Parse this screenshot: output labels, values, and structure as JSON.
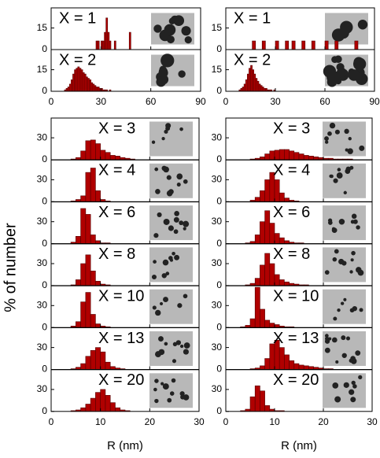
{
  "ylabel": "% of number",
  "chart_data": [
    {
      "type": "histogram",
      "annotation": "X = 1",
      "color": "#b00000",
      "xlim": [
        0,
        90
      ],
      "ylim": [
        0,
        29
      ],
      "yticks": [
        0,
        15
      ],
      "bins": [
        24,
        25,
        26,
        27,
        28,
        29,
        30,
        31,
        32,
        33,
        34,
        35,
        36,
        37,
        38,
        39,
        40,
        41,
        42,
        43,
        44,
        45,
        46,
        47,
        48
      ],
      "values": [
        0,
        0,
        0,
        6,
        6,
        0,
        6,
        6,
        12,
        22,
        12,
        6,
        0,
        0,
        6,
        0,
        0,
        0,
        0,
        0,
        0,
        0,
        0,
        12
      ]
    },
    {
      "type": "histogram",
      "annotation": "X = 2",
      "color": "#b00000",
      "xlim": [
        0,
        90
      ],
      "ylim": [
        0,
        29
      ],
      "yticks": [
        0,
        15
      ],
      "xticks": [
        0,
        30,
        60,
        90
      ],
      "bins": [
        8,
        9,
        10,
        11,
        12,
        13,
        14,
        15,
        16,
        17,
        18,
        19,
        20,
        21,
        22,
        23,
        24,
        25,
        26,
        27,
        28,
        29,
        30,
        31,
        32,
        33,
        34,
        35,
        36
      ],
      "values": [
        1,
        2,
        3,
        5,
        8,
        12,
        15,
        16,
        17,
        16,
        15,
        13,
        12,
        10,
        9,
        8,
        6,
        5,
        4,
        3,
        3,
        2,
        2,
        1,
        1,
        1,
        0,
        1
      ]
    },
    {
      "type": "histogram",
      "annotation": "X = 1",
      "color": "#b00000",
      "xlim": [
        0,
        90
      ],
      "ylim": [
        0,
        29
      ],
      "yticks": [
        0,
        15
      ],
      "bins": [
        16,
        18,
        20,
        22,
        24,
        26,
        28,
        30,
        32,
        34,
        36,
        38,
        40,
        42,
        44,
        46,
        48,
        50,
        52,
        54,
        56,
        58,
        60,
        62,
        64,
        66,
        68,
        70,
        72,
        74,
        76,
        78,
        80
      ],
      "values": [
        6,
        0,
        0,
        6,
        0,
        0,
        0,
        6,
        0,
        0,
        6,
        0,
        6,
        0,
        0,
        6,
        0,
        0,
        6,
        0,
        0,
        0,
        6,
        0,
        0,
        6,
        0,
        0,
        0,
        0,
        0,
        6
      ]
    },
    {
      "type": "histogram",
      "annotation": "X = 2",
      "color": "#b00000",
      "xlim": [
        0,
        90
      ],
      "ylim": [
        0,
        29
      ],
      "yticks": [
        0,
        15
      ],
      "xticks": [
        0,
        30,
        60,
        90
      ],
      "bins": [
        8,
        9,
        10,
        11,
        12,
        13,
        14,
        15,
        16,
        17,
        18,
        19,
        20,
        21,
        22,
        23,
        24,
        25,
        26,
        27,
        28,
        29,
        30
      ],
      "values": [
        1,
        2,
        3,
        5,
        8,
        12,
        16,
        18,
        15,
        12,
        9,
        7,
        5,
        4,
        3,
        2,
        2,
        1,
        1,
        1,
        0,
        1
      ]
    },
    {
      "type": "histogram",
      "annotation": "X = 3",
      "color": "#b00000",
      "xlim": [
        0,
        30
      ],
      "ylim": [
        0,
        57
      ],
      "yticks": [
        0,
        30
      ],
      "bins": [
        4,
        5,
        6,
        7,
        8,
        9,
        10,
        11,
        12,
        13,
        14,
        15,
        16,
        17
      ],
      "values": [
        1,
        3,
        12,
        26,
        27,
        22,
        13,
        10,
        6,
        5,
        3,
        2,
        1
      ]
    },
    {
      "type": "histogram",
      "annotation": "X = 4",
      "color": "#b00000",
      "xlim": [
        0,
        30
      ],
      "ylim": [
        0,
        57
      ],
      "yticks": [
        0,
        30
      ],
      "bins": [
        4,
        5,
        6,
        7,
        8,
        9,
        10,
        11,
        12
      ],
      "values": [
        1,
        3,
        8,
        40,
        46,
        15,
        3,
        1
      ]
    },
    {
      "type": "histogram",
      "annotation": "X = 6",
      "color": "#b00000",
      "xlim": [
        0,
        30
      ],
      "ylim": [
        0,
        57
      ],
      "yticks": [
        0,
        30
      ],
      "bins": [
        4,
        5,
        6,
        7,
        8,
        9,
        10,
        11,
        12
      ],
      "values": [
        2,
        10,
        48,
        40,
        12,
        4,
        1,
        1
      ]
    },
    {
      "type": "histogram",
      "annotation": "X = 8",
      "color": "#b00000",
      "xlim": [
        0,
        30
      ],
      "ylim": [
        0,
        57
      ],
      "yticks": [
        0,
        30
      ],
      "bins": [
        4,
        5,
        6,
        7,
        8,
        9,
        10,
        11,
        12
      ],
      "values": [
        1,
        8,
        30,
        42,
        20,
        6,
        2,
        1
      ]
    },
    {
      "type": "histogram",
      "annotation": "X = 10",
      "color": "#b00000",
      "xlim": [
        0,
        30
      ],
      "ylim": [
        0,
        57
      ],
      "yticks": [
        0,
        30
      ],
      "bins": [
        4,
        5,
        6,
        7,
        8,
        9,
        10,
        11,
        12
      ],
      "values": [
        2,
        8,
        35,
        48,
        18,
        5,
        2,
        1
      ]
    },
    {
      "type": "histogram",
      "annotation": "X = 13",
      "color": "#b00000",
      "xlim": [
        0,
        30
      ],
      "ylim": [
        0,
        57
      ],
      "yticks": [
        0,
        30
      ],
      "bins": [
        4,
        5,
        6,
        7,
        8,
        9,
        10,
        11,
        12,
        13,
        14,
        15
      ],
      "values": [
        1,
        3,
        8,
        18,
        26,
        30,
        24,
        10,
        4,
        2,
        1
      ]
    },
    {
      "type": "histogram",
      "annotation": "X = 20",
      "color": "#b00000",
      "xlim": [
        0,
        30
      ],
      "ylim": [
        0,
        57
      ],
      "yticks": [
        0,
        30
      ],
      "xticks": [
        0,
        10,
        20,
        30
      ],
      "xlabel": "R (nm)",
      "bins": [
        4,
        5,
        6,
        7,
        8,
        9,
        10,
        11,
        12,
        13,
        14,
        15,
        16
      ],
      "values": [
        1,
        2,
        5,
        10,
        18,
        26,
        30,
        22,
        12,
        5,
        2,
        1
      ]
    },
    {
      "type": "histogram",
      "annotation": "X = 3",
      "color": "#b00000",
      "xlim": [
        0,
        30
      ],
      "ylim": [
        0,
        57
      ],
      "yticks": [
        0,
        30
      ],
      "bins": [
        5,
        6,
        7,
        8,
        9,
        10,
        11,
        12,
        13,
        14,
        15,
        16,
        17,
        18,
        19,
        20,
        21,
        22,
        23,
        24,
        25,
        26
      ],
      "values": [
        1,
        2,
        4,
        8,
        12,
        13,
        14,
        14,
        12,
        10,
        8,
        6,
        5,
        4,
        3,
        2,
        2,
        1,
        1,
        1,
        1
      ]
    },
    {
      "type": "histogram",
      "annotation": "X = 4",
      "color": "#b00000",
      "xlim": [
        0,
        30
      ],
      "ylim": [
        0,
        57
      ],
      "yticks": [
        0,
        30
      ],
      "bins": [
        5,
        6,
        7,
        8,
        9,
        10,
        11,
        12,
        13,
        14,
        15
      ],
      "values": [
        2,
        6,
        15,
        30,
        40,
        30,
        12,
        5,
        2,
        1
      ]
    },
    {
      "type": "histogram",
      "annotation": "X = 6",
      "color": "#b00000",
      "xlim": [
        0,
        30
      ],
      "ylim": [
        0,
        57
      ],
      "yticks": [
        0,
        30
      ],
      "bins": [
        4,
        5,
        6,
        7,
        8,
        9,
        10,
        11,
        12,
        13,
        14,
        15,
        16
      ],
      "values": [
        1,
        3,
        12,
        30,
        45,
        28,
        14,
        8,
        4,
        2,
        1,
        1
      ]
    },
    {
      "type": "histogram",
      "annotation": "X = 8",
      "color": "#b00000",
      "xlim": [
        0,
        30
      ],
      "ylim": [
        0,
        57
      ],
      "yticks": [
        0,
        30
      ],
      "bins": [
        4,
        5,
        6,
        7,
        8,
        9,
        10,
        11,
        12,
        13,
        14,
        15,
        16,
        17
      ],
      "values": [
        1,
        3,
        10,
        28,
        44,
        30,
        15,
        8,
        5,
        3,
        2,
        1,
        1
      ]
    },
    {
      "type": "histogram",
      "annotation": "X = 10",
      "color": "#b00000",
      "xlim": [
        0,
        30
      ],
      "ylim": [
        0,
        57
      ],
      "yticks": [
        0,
        30
      ],
      "bins": [
        3,
        4,
        5,
        6,
        7,
        8,
        9,
        10,
        11,
        12,
        13,
        14
      ],
      "values": [
        1,
        3,
        12,
        55,
        25,
        10,
        6,
        4,
        2,
        1,
        1
      ]
    },
    {
      "type": "histogram",
      "annotation": "X = 13",
      "color": "#b00000",
      "xlim": [
        0,
        30
      ],
      "ylim": [
        0,
        57
      ],
      "yticks": [
        0,
        30
      ],
      "bins": [
        5,
        6,
        7,
        8,
        9,
        10,
        11,
        12,
        13,
        14,
        15,
        16,
        17,
        18,
        19,
        20,
        21,
        22
      ],
      "values": [
        1,
        2,
        5,
        15,
        35,
        40,
        30,
        20,
        12,
        8,
        6,
        5,
        4,
        3,
        2,
        1,
        1
      ]
    },
    {
      "type": "histogram",
      "annotation": "X = 20",
      "color": "#b00000",
      "xlim": [
        0,
        30
      ],
      "ylim": [
        0,
        57
      ],
      "yticks": [
        0,
        30
      ],
      "xticks": [
        0,
        10,
        20,
        30
      ],
      "xlabel": "R (nm)",
      "bins": [
        3,
        4,
        5,
        6,
        7,
        8,
        9,
        10,
        11,
        12
      ],
      "values": [
        1,
        3,
        20,
        35,
        28,
        8,
        3,
        1,
        1
      ]
    }
  ]
}
